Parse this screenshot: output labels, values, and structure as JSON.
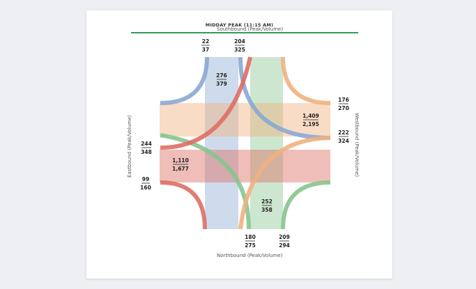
{
  "title": "MIDDAY PEAK (11:15 AM)",
  "directions": {
    "south": "Southbound (Peak/Volume)",
    "north": "Northbound  (Peak/Volume)",
    "east": "Eastbound (Peak/Volume)",
    "west": "Westbound (Peak/Volume)"
  },
  "colors": {
    "blue": "#8aa9d1",
    "green": "#87c48f",
    "red": "#de6e64",
    "orange": "#efb17e",
    "rule": "#2e9d5a"
  },
  "labels": {
    "sb_right_turn": {
      "peak": "22",
      "volume": "37"
    },
    "sb_left_turn": {
      "peak": "204",
      "volume": "325"
    },
    "sb_through": {
      "peak": "276",
      "volume": "379"
    },
    "wb_right_turn": {
      "peak": "176",
      "volume": "270"
    },
    "wb_through": {
      "peak": "1,409",
      "volume": "2,195"
    },
    "wb_left_turn": {
      "peak": "222",
      "volume": "324"
    },
    "eb_left_turn": {
      "peak": "244",
      "volume": "348"
    },
    "eb_through": {
      "peak": "1,110",
      "volume": "1,677"
    },
    "eb_right_turn": {
      "peak": "99",
      "volume": "160"
    },
    "nb_through": {
      "peak": "252",
      "volume": "358"
    },
    "nb_left_turn": {
      "peak": "180",
      "volume": "275"
    },
    "nb_right_turn": {
      "peak": "209",
      "volume": "294"
    }
  }
}
